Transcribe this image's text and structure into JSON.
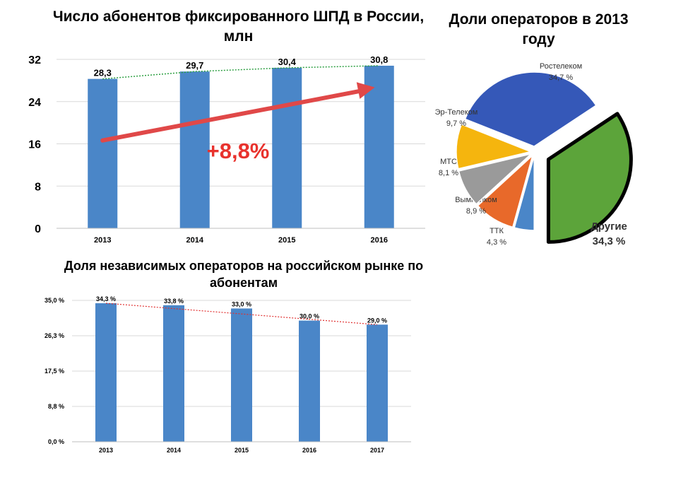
{
  "chart_data": [
    {
      "type": "bar",
      "title": "Число абонентов фиксированного ШПД в России, млн",
      "categories": [
        "2013",
        "2014",
        "2015",
        "2016"
      ],
      "values": [
        28.3,
        29.7,
        30.4,
        30.8
      ],
      "value_labels": [
        "28,3",
        "29,7",
        "30,4",
        "30,8"
      ],
      "y_ticks": [
        "0",
        "8",
        "16",
        "24",
        "32"
      ],
      "ylim": [
        0,
        32
      ],
      "grid": true,
      "trendline": "dotted-green",
      "annotation": "+8,8%",
      "colors": {
        "bar": "#4a86c8",
        "trend": "#2ea043",
        "arrow": "#e04848",
        "annotation": "#e8322d"
      }
    },
    {
      "type": "pie",
      "title": "Доли операторов в 2013 году",
      "slices": [
        {
          "name": "Ростелеком",
          "value": 34.7,
          "label": "34,7 %",
          "color": "#3558b8"
        },
        {
          "name": "Другие",
          "value": 34.3,
          "label": "34,3 %",
          "color": "#5ca43a"
        },
        {
          "name": "ТТК",
          "value": 4.3,
          "label": "4,3 %",
          "color": "#4a86c8"
        },
        {
          "name": "Вымпелком",
          "value": 8.9,
          "label": "8,9 %",
          "color": "#e8692a"
        },
        {
          "name": "МТС",
          "value": 8.1,
          "label": "8,1 %",
          "color": "#9a9a9a"
        },
        {
          "name": "Эр-Телеком",
          "value": 9.7,
          "label": "9,7 %",
          "color": "#f5b50e"
        }
      ]
    },
    {
      "type": "bar",
      "title": "Доля независимых операторов на российском рынке по абонентам",
      "categories": [
        "2013",
        "2014",
        "2015",
        "2016",
        "2017"
      ],
      "values": [
        34.3,
        33.8,
        33.0,
        30.0,
        29.0
      ],
      "value_labels": [
        "34,3 %",
        "33,8 %",
        "33,0 %",
        "30,0 %",
        "29,0 %"
      ],
      "y_ticks": [
        "0,0 %",
        "8,8 %",
        "17,5 %",
        "26,3 %",
        "35,0 %"
      ],
      "ylim": [
        0,
        35
      ],
      "grid": true,
      "trendline": "dotted-red",
      "colors": {
        "bar": "#4a86c8",
        "trend": "#e03030"
      }
    }
  ]
}
